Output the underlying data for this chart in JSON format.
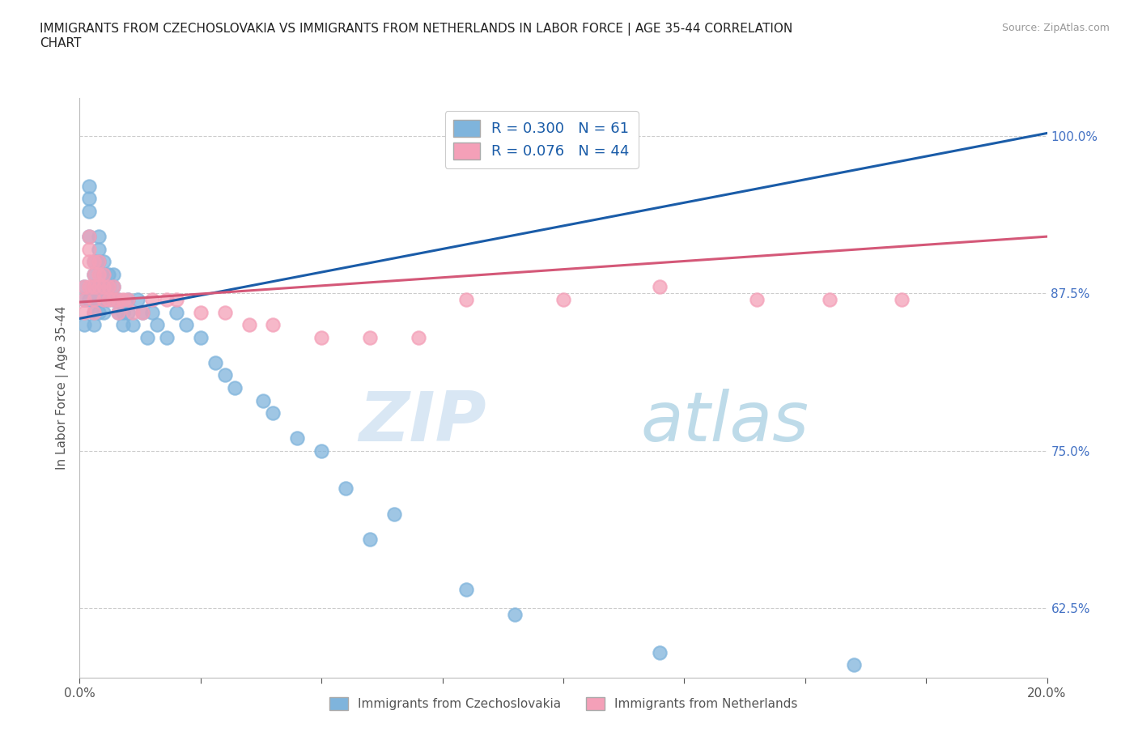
{
  "title": "IMMIGRANTS FROM CZECHOSLOVAKIA VS IMMIGRANTS FROM NETHERLANDS IN LABOR FORCE | AGE 35-44 CORRELATION\nCHART",
  "source_text": "Source: ZipAtlas.com",
  "ylabel": "In Labor Force | Age 35-44",
  "xlim": [
    0.0,
    0.2
  ],
  "ylim": [
    0.57,
    1.03
  ],
  "ytick_positions": [
    0.625,
    0.75,
    0.875,
    1.0
  ],
  "ytick_labels": [
    "62.5%",
    "75.0%",
    "87.5%",
    "100.0%"
  ],
  "r_czech": 0.3,
  "n_czech": 61,
  "r_neth": 0.076,
  "n_neth": 44,
  "color_czech": "#7fb4dc",
  "color_neth": "#f4a0b8",
  "trendline_czech_color": "#1a5ca8",
  "trendline_neth_color": "#d45878",
  "watermark_zip": "ZIP",
  "watermark_atlas": "atlas",
  "legend_label_czech": "Immigrants from Czechoslovakia",
  "legend_label_neth": "Immigrants from Netherlands",
  "czech_x": [
    0.001,
    0.001,
    0.001,
    0.002,
    0.002,
    0.002,
    0.002,
    0.002,
    0.003,
    0.003,
    0.003,
    0.003,
    0.003,
    0.003,
    0.004,
    0.004,
    0.004,
    0.004,
    0.004,
    0.004,
    0.005,
    0.005,
    0.005,
    0.005,
    0.005,
    0.006,
    0.006,
    0.006,
    0.007,
    0.007,
    0.007,
    0.008,
    0.008,
    0.009,
    0.009,
    0.01,
    0.01,
    0.011,
    0.012,
    0.013,
    0.014,
    0.015,
    0.016,
    0.018,
    0.02,
    0.022,
    0.025,
    0.028,
    0.03,
    0.032,
    0.038,
    0.04,
    0.045,
    0.05,
    0.055,
    0.06,
    0.065,
    0.08,
    0.09,
    0.12,
    0.16
  ],
  "czech_y": [
    0.87,
    0.88,
    0.85,
    0.92,
    0.96,
    0.95,
    0.94,
    0.87,
    0.9,
    0.89,
    0.88,
    0.87,
    0.86,
    0.85,
    0.92,
    0.91,
    0.9,
    0.88,
    0.87,
    0.86,
    0.9,
    0.89,
    0.88,
    0.87,
    0.86,
    0.89,
    0.88,
    0.87,
    0.89,
    0.88,
    0.87,
    0.87,
    0.86,
    0.86,
    0.85,
    0.87,
    0.86,
    0.85,
    0.87,
    0.86,
    0.84,
    0.86,
    0.85,
    0.84,
    0.86,
    0.85,
    0.84,
    0.82,
    0.81,
    0.8,
    0.79,
    0.78,
    0.76,
    0.75,
    0.72,
    0.68,
    0.7,
    0.64,
    0.62,
    0.59,
    0.58
  ],
  "neth_x": [
    0.001,
    0.001,
    0.001,
    0.002,
    0.002,
    0.002,
    0.002,
    0.003,
    0.003,
    0.003,
    0.003,
    0.003,
    0.004,
    0.004,
    0.004,
    0.005,
    0.005,
    0.005,
    0.006,
    0.006,
    0.007,
    0.007,
    0.008,
    0.008,
    0.009,
    0.01,
    0.011,
    0.013,
    0.015,
    0.018,
    0.02,
    0.025,
    0.03,
    0.035,
    0.04,
    0.05,
    0.06,
    0.07,
    0.08,
    0.1,
    0.12,
    0.14,
    0.155,
    0.17
  ],
  "neth_y": [
    0.88,
    0.87,
    0.86,
    0.92,
    0.91,
    0.9,
    0.88,
    0.9,
    0.89,
    0.88,
    0.87,
    0.86,
    0.9,
    0.89,
    0.88,
    0.89,
    0.88,
    0.87,
    0.88,
    0.87,
    0.88,
    0.87,
    0.87,
    0.86,
    0.87,
    0.87,
    0.86,
    0.86,
    0.87,
    0.87,
    0.87,
    0.86,
    0.86,
    0.85,
    0.85,
    0.84,
    0.84,
    0.84,
    0.87,
    0.87,
    0.88,
    0.87,
    0.87,
    0.87
  ],
  "trendline_czech_x0": 0.0,
  "trendline_czech_y0": 0.855,
  "trendline_czech_x1": 0.2,
  "trendline_czech_y1": 1.002,
  "trendline_neth_x0": 0.0,
  "trendline_neth_y0": 0.868,
  "trendline_neth_x1": 0.2,
  "trendline_neth_y1": 0.92
}
